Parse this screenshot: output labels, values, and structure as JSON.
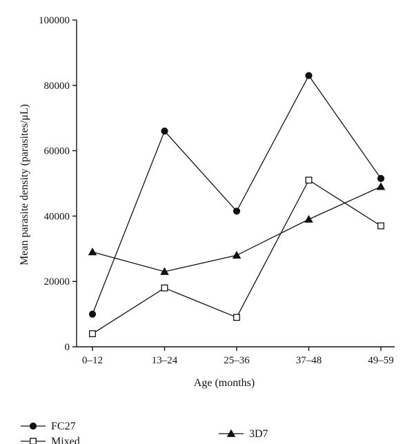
{
  "chart_data": {
    "type": "line",
    "categories": [
      "0–12",
      "13–24",
      "25–36",
      "37–48",
      "49–59"
    ],
    "xlabel": "Age (months)",
    "ylabel": "Mean parasite density (parasites/μL)",
    "ylim": [
      0,
      100000
    ],
    "yticks": [
      "0",
      "20000",
      "40000",
      "60000",
      "80000",
      "100000"
    ],
    "grid": false,
    "legend_position": "bottom",
    "series": [
      {
        "name": "FC27",
        "marker": "filled-circle",
        "values": [
          10000,
          66000,
          41500,
          83000,
          51500
        ]
      },
      {
        "name": "Mixed",
        "marker": "open-square",
        "values": [
          4000,
          18000,
          9000,
          51000,
          37000
        ]
      },
      {
        "name": "3D7",
        "marker": "filled-triangle",
        "values": [
          29000,
          23000,
          28000,
          39000,
          49000
        ]
      }
    ]
  }
}
